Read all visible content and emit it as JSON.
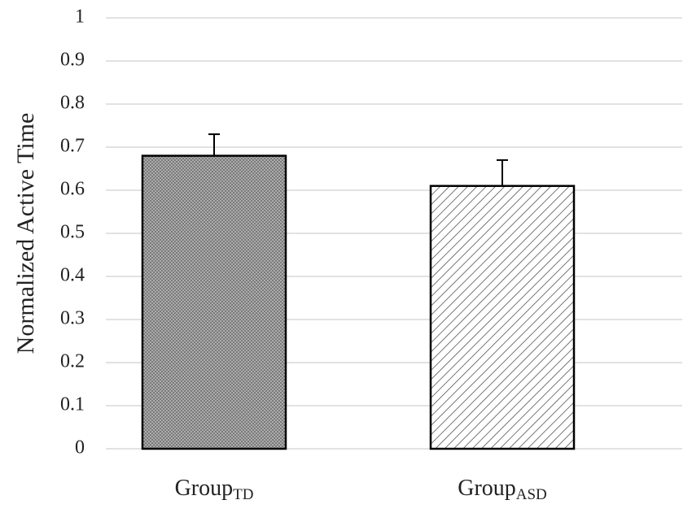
{
  "chart_data": {
    "type": "bar",
    "y_label": "Normalized Active Time",
    "categories": [
      {
        "text": "Group",
        "subscript": "TD"
      },
      {
        "text": "Group",
        "subscript": "ASD"
      }
    ],
    "values": [
      0.68,
      0.61
    ],
    "errors": [
      0.05,
      0.06
    ],
    "ylim": [
      0,
      1
    ],
    "yticks": [
      0,
      0.1,
      0.2,
      0.3,
      0.4,
      0.5,
      0.6,
      0.7,
      0.8,
      0.9,
      1
    ],
    "grid": true
  }
}
